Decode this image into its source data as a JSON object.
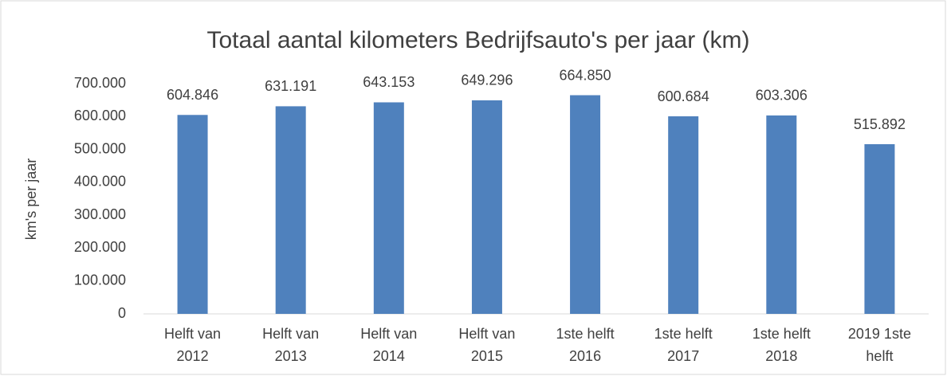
{
  "chart_data": {
    "type": "bar",
    "title": "Totaal aantal kilometers Bedrijfsauto's per jaar (km)",
    "y_label": "km's per jaar",
    "categories": [
      [
        "Helft van",
        "2012"
      ],
      [
        "Helft van",
        "2013"
      ],
      [
        "Helft van",
        "2014"
      ],
      [
        "Helft van",
        "2015"
      ],
      [
        "1ste helft",
        "2016"
      ],
      [
        "1ste helft",
        "2017"
      ],
      [
        "1ste helft",
        "2018"
      ],
      [
        "2019 1ste",
        "helft"
      ]
    ],
    "values": [
      604846,
      631191,
      643153,
      649296,
      664850,
      600684,
      603306,
      515892
    ],
    "value_labels": [
      "604.846",
      "631.191",
      "643.153",
      "649.296",
      "664.850",
      "600.684",
      "603.306",
      "515.892"
    ],
    "color": "#4f81bd",
    "ylim": [
      0,
      700000
    ],
    "yticks": [
      0,
      {
        "value": 100000,
        "label": "100.000"
      },
      {
        "value": 200000,
        "label": "200.000"
      },
      {
        "value": 300000,
        "label": "300.000"
      },
      {
        "value": 400000,
        "label": "400.000"
      },
      {
        "value": 500000,
        "label": "500.000"
      },
      {
        "value": 600000,
        "label": "600.000"
      },
      {
        "value": 700000,
        "label": "700.000"
      }
    ],
    "grid": false
  }
}
